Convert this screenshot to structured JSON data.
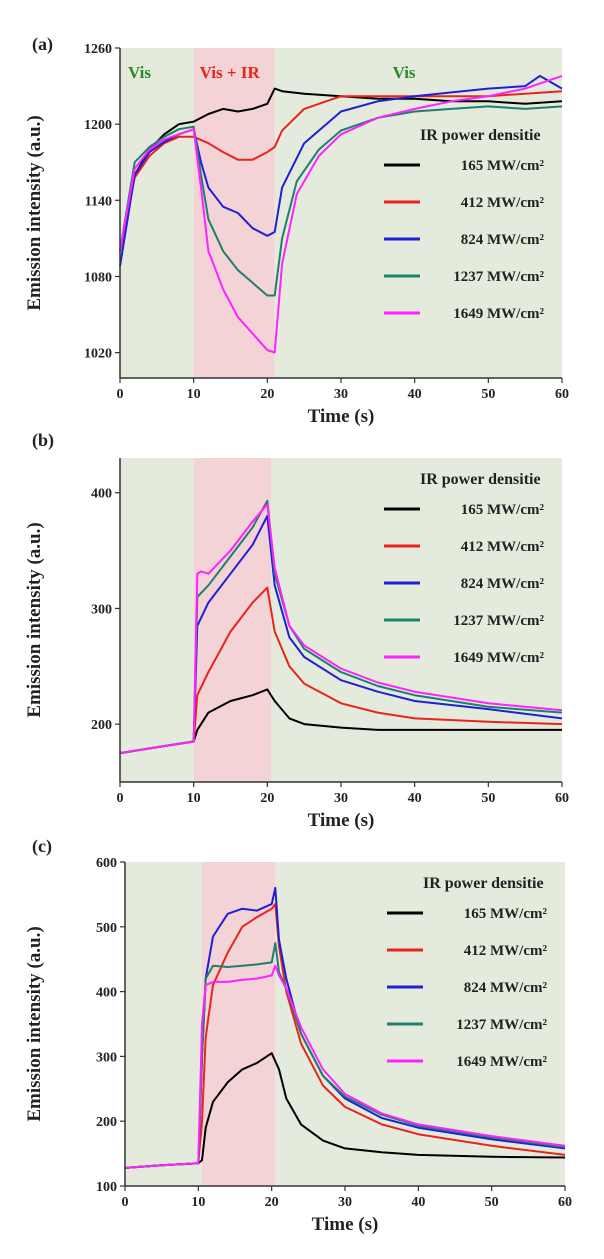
{
  "colors": {
    "vis_region": "#e4ebdc",
    "ir_region": "#f3d3d5",
    "vis_label": "#2a8a2a",
    "ir_label": "#e8241c",
    "series": [
      "#000000",
      "#e8241c",
      "#1f1fd6",
      "#1e7f6e",
      "#ff22ff"
    ]
  },
  "chart_data": [
    {
      "panel_label": "(a)",
      "type": "line",
      "xlabel": "Time (s)",
      "ylabel": "Emission intensity (a.u.)",
      "xlim": [
        0,
        60
      ],
      "ylim": [
        1000,
        1260
      ],
      "xticks": [
        0,
        10,
        20,
        30,
        40,
        50,
        60
      ],
      "yticks": [
        1020,
        1080,
        1140,
        1200,
        1260
      ],
      "legend_title": "IR power densitie",
      "legend_position": "right",
      "regions": [
        {
          "kind": "vis",
          "from": 0,
          "to": 10,
          "label": "Vis"
        },
        {
          "kind": "ir",
          "from": 10,
          "to": 21,
          "label": "Vis + IR"
        },
        {
          "kind": "vis",
          "from": 21,
          "to": 60,
          "label": "Vis"
        }
      ],
      "series": [
        {
          "name": "165 MW/cm²",
          "x": [
            0,
            2,
            4,
            6,
            8,
            10,
            12,
            14,
            16,
            18,
            20,
            21,
            22,
            25,
            30,
            35,
            40,
            45,
            50,
            55,
            60
          ],
          "y": [
            1100,
            1160,
            1180,
            1192,
            1200,
            1202,
            1208,
            1212,
            1210,
            1212,
            1216,
            1228,
            1226,
            1224,
            1222,
            1220,
            1220,
            1218,
            1218,
            1216,
            1218
          ]
        },
        {
          "name": "412 MW/cm²",
          "x": [
            0,
            2,
            4,
            6,
            8,
            10,
            12,
            14,
            16,
            18,
            20,
            21,
            22,
            25,
            30,
            35,
            40,
            45,
            50,
            55,
            60
          ],
          "y": [
            1100,
            1158,
            1175,
            1185,
            1190,
            1190,
            1185,
            1178,
            1172,
            1172,
            1178,
            1182,
            1195,
            1212,
            1222,
            1222,
            1222,
            1222,
            1222,
            1224,
            1226
          ]
        },
        {
          "name": "824 MW/cm²",
          "x": [
            0,
            2,
            4,
            6,
            8,
            10,
            11,
            12,
            14,
            16,
            18,
            20,
            21,
            22,
            25,
            28,
            30,
            35,
            40,
            45,
            50,
            55,
            57,
            60
          ],
          "y": [
            1088,
            1160,
            1178,
            1186,
            1192,
            1196,
            1170,
            1150,
            1135,
            1130,
            1118,
            1112,
            1115,
            1150,
            1185,
            1200,
            1210,
            1218,
            1222,
            1225,
            1228,
            1230,
            1238,
            1228
          ]
        },
        {
          "name": "1237 MW/cm²",
          "x": [
            0,
            2,
            4,
            6,
            8,
            10,
            11,
            12,
            14,
            16,
            18,
            20,
            21,
            22,
            24,
            27,
            30,
            35,
            40,
            45,
            50,
            55,
            60
          ],
          "y": [
            1100,
            1170,
            1182,
            1190,
            1196,
            1198,
            1160,
            1125,
            1100,
            1085,
            1075,
            1065,
            1065,
            1110,
            1155,
            1180,
            1195,
            1205,
            1210,
            1212,
            1214,
            1212,
            1214
          ]
        },
        {
          "name": "1649 MW/cm²",
          "x": [
            0,
            2,
            4,
            6,
            8,
            10,
            11,
            12,
            14,
            16,
            18,
            20,
            21,
            22,
            24,
            27,
            30,
            35,
            40,
            45,
            50,
            55,
            60
          ],
          "y": [
            1100,
            1165,
            1180,
            1188,
            1192,
            1196,
            1150,
            1100,
            1070,
            1048,
            1035,
            1022,
            1020,
            1090,
            1145,
            1175,
            1192,
            1205,
            1212,
            1218,
            1222,
            1228,
            1238
          ]
        }
      ]
    },
    {
      "panel_label": "(b)",
      "type": "line",
      "xlabel": "Time (s)",
      "ylabel": "Emission intensity (a.u.)",
      "xlim": [
        0,
        60
      ],
      "ylim": [
        150,
        430
      ],
      "xticks": [
        0,
        10,
        20,
        30,
        40,
        50,
        60
      ],
      "yticks": [
        200,
        300,
        400
      ],
      "legend_title": "IR power densitie",
      "legend_position": "right",
      "regions": [
        {
          "kind": "vis",
          "from": 0,
          "to": 10
        },
        {
          "kind": "ir",
          "from": 10,
          "to": 20.5
        },
        {
          "kind": "vis",
          "from": 20.5,
          "to": 60
        }
      ],
      "series": [
        {
          "name": "165 MW/cm²",
          "x": [
            0,
            5,
            10,
            10.5,
            12,
            15,
            18,
            20,
            21,
            23,
            25,
            30,
            35,
            40,
            50,
            60
          ],
          "y": [
            175,
            180,
            185,
            195,
            210,
            220,
            225,
            230,
            220,
            205,
            200,
            197,
            195,
            195,
            195,
            195
          ]
        },
        {
          "name": "412 MW/cm²",
          "x": [
            0,
            5,
            10,
            10.5,
            12,
            15,
            18,
            20,
            21,
            23,
            25,
            30,
            35,
            40,
            50,
            60
          ],
          "y": [
            175,
            180,
            185,
            225,
            245,
            280,
            305,
            318,
            280,
            250,
            235,
            218,
            210,
            205,
            202,
            200
          ]
        },
        {
          "name": "824 MW/cm²",
          "x": [
            0,
            5,
            10,
            10.5,
            12,
            15,
            18,
            20,
            21,
            23,
            25,
            30,
            35,
            40,
            50,
            60
          ],
          "y": [
            175,
            180,
            185,
            285,
            305,
            330,
            355,
            380,
            320,
            275,
            258,
            238,
            228,
            220,
            213,
            205
          ]
        },
        {
          "name": "1237 MW/cm²",
          "x": [
            0,
            5,
            10,
            10.5,
            12,
            15,
            18,
            20,
            21,
            23,
            25,
            30,
            35,
            40,
            50,
            60
          ],
          "y": [
            175,
            180,
            185,
            310,
            320,
            345,
            370,
            393,
            330,
            285,
            265,
            245,
            233,
            225,
            215,
            210
          ]
        },
        {
          "name": "1649 MW/cm²",
          "x": [
            0,
            5,
            10,
            10.5,
            11,
            12,
            15,
            18,
            20,
            21,
            23,
            25,
            30,
            35,
            40,
            50,
            60
          ],
          "y": [
            175,
            180,
            185,
            330,
            332,
            330,
            350,
            375,
            390,
            335,
            285,
            268,
            248,
            236,
            228,
            218,
            212
          ]
        }
      ]
    },
    {
      "panel_label": "(c)",
      "type": "line",
      "xlabel": "Time (s)",
      "ylabel": "Emission intensity (a.u.)",
      "xlim": [
        0,
        60
      ],
      "ylim": [
        100,
        600
      ],
      "xticks": [
        0,
        10,
        20,
        30,
        40,
        50,
        60
      ],
      "yticks": [
        100,
        200,
        300,
        400,
        500,
        600
      ],
      "legend_title": "IR power densitie",
      "legend_position": "right",
      "regions": [
        {
          "kind": "vis",
          "from": 0,
          "to": 10.5
        },
        {
          "kind": "ir",
          "from": 10.5,
          "to": 20.5
        },
        {
          "kind": "vis",
          "from": 20.5,
          "to": 60
        }
      ],
      "series": [
        {
          "name": "165 MW/cm²",
          "x": [
            0,
            5,
            10,
            10.5,
            11,
            12,
            14,
            16,
            18,
            20,
            21,
            22,
            24,
            27,
            30,
            35,
            40,
            50,
            60
          ],
          "y": [
            128,
            132,
            135,
            140,
            190,
            230,
            260,
            280,
            290,
            305,
            280,
            235,
            195,
            170,
            158,
            152,
            148,
            145,
            144
          ]
        },
        {
          "name": "412 MW/cm²",
          "x": [
            0,
            5,
            10,
            10.5,
            11,
            12,
            14,
            16,
            18,
            20,
            20.5,
            21,
            22,
            24,
            27,
            30,
            35,
            40,
            50,
            60
          ],
          "y": [
            128,
            132,
            135,
            200,
            330,
            410,
            460,
            500,
            515,
            528,
            535,
            470,
            400,
            320,
            255,
            222,
            195,
            180,
            162,
            148
          ]
        },
        {
          "name": "824 MW/cm²",
          "x": [
            0,
            5,
            10,
            10.5,
            11,
            12,
            14,
            16,
            18,
            20,
            20.5,
            21,
            22,
            24,
            27,
            30,
            35,
            40,
            50,
            60
          ],
          "y": [
            128,
            132,
            135,
            300,
            420,
            485,
            520,
            528,
            525,
            535,
            560,
            480,
            420,
            335,
            270,
            235,
            205,
            190,
            172,
            158
          ]
        },
        {
          "name": "1237 MW/cm²",
          "x": [
            0,
            5,
            10,
            10.5,
            11,
            12,
            14,
            16,
            18,
            20,
            20.5,
            21,
            22,
            24,
            27,
            30,
            35,
            40,
            50,
            60
          ],
          "y": [
            128,
            132,
            135,
            300,
            420,
            440,
            438,
            440,
            442,
            445,
            475,
            430,
            405,
            335,
            270,
            238,
            210,
            193,
            175,
            160
          ]
        },
        {
          "name": "1649 MW/cm²",
          "x": [
            0,
            5,
            10,
            10.5,
            11,
            12,
            14,
            16,
            18,
            20,
            20.5,
            21,
            22,
            24,
            27,
            30,
            35,
            40,
            50,
            60
          ],
          "y": [
            128,
            132,
            135,
            350,
            410,
            415,
            415,
            418,
            420,
            425,
            440,
            425,
            405,
            345,
            280,
            242,
            212,
            195,
            177,
            162
          ]
        }
      ]
    }
  ]
}
